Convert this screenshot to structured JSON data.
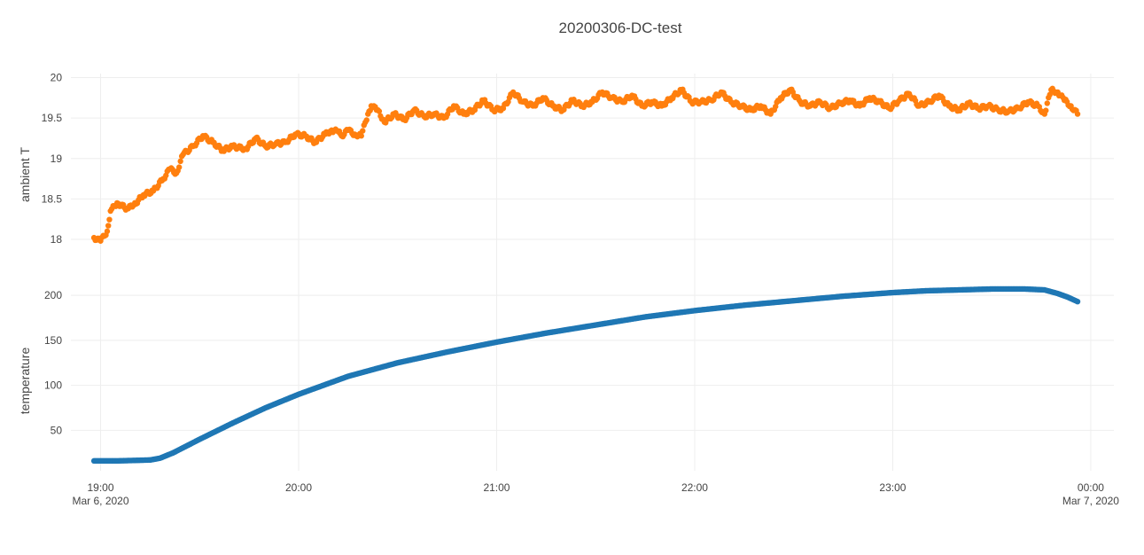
{
  "chart_data": {
    "type": "scatter",
    "title": "20200306-DC-test",
    "xlabel": "",
    "x_ticks": [
      {
        "t": "2020-03-06T19:00",
        "label": "19:00",
        "sublabel": "Mar 6, 2020"
      },
      {
        "t": "2020-03-06T20:00",
        "label": "20:00",
        "sublabel": ""
      },
      {
        "t": "2020-03-06T21:00",
        "label": "21:00",
        "sublabel": ""
      },
      {
        "t": "2020-03-06T22:00",
        "label": "22:00",
        "sublabel": ""
      },
      {
        "t": "2020-03-06T23:00",
        "label": "23:00",
        "sublabel": ""
      },
      {
        "t": "2020-03-07T00:00",
        "label": "00:00",
        "sublabel": "Mar 7, 2020"
      }
    ],
    "xlim": [
      "2020-03-06T18:51",
      "2020-03-07T00:07"
    ],
    "subplots": [
      {
        "ylabel": "ambient T",
        "ylim": [
          17.55,
          20.05
        ],
        "yticks": [
          18,
          18.5,
          19,
          19.5,
          20
        ],
        "ytick_labels": [
          "18",
          "18.5",
          "19",
          "19.5",
          "20"
        ],
        "series": [
          {
            "color": "#ff7f0e",
            "points": [
              [
                "2020-03-06T18:58",
                18.02
              ],
              [
                "2020-03-06T19:00",
                17.98
              ],
              [
                "2020-03-06T19:02",
                18.1
              ],
              [
                "2020-03-06T19:03",
                18.35
              ],
              [
                "2020-03-06T19:05",
                18.45
              ],
              [
                "2020-03-06T19:08",
                18.38
              ],
              [
                "2020-03-06T19:10",
                18.42
              ],
              [
                "2020-03-06T19:13",
                18.55
              ],
              [
                "2020-03-06T19:16",
                18.6
              ],
              [
                "2020-03-06T19:19",
                18.75
              ],
              [
                "2020-03-06T19:21",
                18.87
              ],
              [
                "2020-03-06T19:23",
                18.82
              ],
              [
                "2020-03-06T19:25",
                19.05
              ],
              [
                "2020-03-06T19:28",
                19.15
              ],
              [
                "2020-03-06T19:31",
                19.28
              ],
              [
                "2020-03-06T19:34",
                19.2
              ],
              [
                "2020-03-06T19:37",
                19.1
              ],
              [
                "2020-03-06T19:40",
                19.15
              ],
              [
                "2020-03-06T19:44",
                19.12
              ],
              [
                "2020-03-06T19:47",
                19.25
              ],
              [
                "2020-03-06T19:50",
                19.15
              ],
              [
                "2020-03-06T19:53",
                19.18
              ],
              [
                "2020-03-06T19:56",
                19.2
              ],
              [
                "2020-03-06T19:59",
                19.3
              ],
              [
                "2020-03-06T20:02",
                19.28
              ],
              [
                "2020-03-06T20:05",
                19.2
              ],
              [
                "2020-03-06T20:08",
                19.3
              ],
              [
                "2020-03-06T20:10",
                19.35
              ],
              [
                "2020-03-06T20:12",
                19.33
              ],
              [
                "2020-03-06T20:13",
                19.28
              ],
              [
                "2020-03-06T20:15",
                19.35
              ],
              [
                "2020-03-06T20:17",
                19.3
              ],
              [
                "2020-03-06T20:19",
                19.28
              ],
              [
                "2020-03-06T20:21",
                19.55
              ],
              [
                "2020-03-06T20:22",
                19.65
              ],
              [
                "2020-03-06T20:24",
                19.6
              ],
              [
                "2020-03-06T20:26",
                19.45
              ],
              [
                "2020-03-06T20:29",
                19.55
              ],
              [
                "2020-03-06T20:32",
                19.48
              ],
              [
                "2020-03-06T20:35",
                19.6
              ],
              [
                "2020-03-06T20:38",
                19.52
              ],
              [
                "2020-03-06T20:41",
                19.55
              ],
              [
                "2020-03-06T20:44",
                19.5
              ],
              [
                "2020-03-06T20:47",
                19.65
              ],
              [
                "2020-03-06T20:50",
                19.55
              ],
              [
                "2020-03-06T20:53",
                19.6
              ],
              [
                "2020-03-06T20:56",
                19.72
              ],
              [
                "2020-03-06T20:59",
                19.6
              ],
              [
                "2020-03-06T21:02",
                19.62
              ],
              [
                "2020-03-06T21:05",
                19.82
              ],
              [
                "2020-03-06T21:08",
                19.7
              ],
              [
                "2020-03-06T21:11",
                19.65
              ],
              [
                "2020-03-06T21:14",
                19.75
              ],
              [
                "2020-03-06T21:17",
                19.65
              ],
              [
                "2020-03-06T21:20",
                19.6
              ],
              [
                "2020-03-06T21:23",
                19.72
              ],
              [
                "2020-03-06T21:26",
                19.65
              ],
              [
                "2020-03-06T21:29",
                19.7
              ],
              [
                "2020-03-06T21:32",
                19.82
              ],
              [
                "2020-03-06T21:35",
                19.75
              ],
              [
                "2020-03-06T21:38",
                19.7
              ],
              [
                "2020-03-06T21:41",
                19.78
              ],
              [
                "2020-03-06T21:44",
                19.65
              ],
              [
                "2020-03-06T21:47",
                19.7
              ],
              [
                "2020-03-06T21:50",
                19.65
              ],
              [
                "2020-03-06T21:53",
                19.75
              ],
              [
                "2020-03-06T21:56",
                19.85
              ],
              [
                "2020-03-06T21:59",
                19.7
              ],
              [
                "2020-03-06T22:02",
                19.7
              ],
              [
                "2020-03-06T22:05",
                19.72
              ],
              [
                "2020-03-06T22:08",
                19.82
              ],
              [
                "2020-03-06T22:11",
                19.7
              ],
              [
                "2020-03-06T22:14",
                19.65
              ],
              [
                "2020-03-06T22:17",
                19.6
              ],
              [
                "2020-03-06T22:20",
                19.65
              ],
              [
                "2020-03-06T22:23",
                19.55
              ],
              [
                "2020-03-06T22:26",
                19.75
              ],
              [
                "2020-03-06T22:29",
                19.85
              ],
              [
                "2020-03-06T22:32",
                19.7
              ],
              [
                "2020-03-06T22:35",
                19.65
              ],
              [
                "2020-03-06T22:38",
                19.7
              ],
              [
                "2020-03-06T22:41",
                19.62
              ],
              [
                "2020-03-06T22:44",
                19.68
              ],
              [
                "2020-03-06T22:47",
                19.72
              ],
              [
                "2020-03-06T22:50",
                19.65
              ],
              [
                "2020-03-06T22:53",
                19.75
              ],
              [
                "2020-03-06T22:56",
                19.7
              ],
              [
                "2020-03-06T22:59",
                19.62
              ],
              [
                "2020-03-06T23:02",
                19.72
              ],
              [
                "2020-03-06T23:05",
                19.8
              ],
              [
                "2020-03-06T23:08",
                19.65
              ],
              [
                "2020-03-06T23:11",
                19.7
              ],
              [
                "2020-03-06T23:14",
                19.78
              ],
              [
                "2020-03-06T23:17",
                19.65
              ],
              [
                "2020-03-06T23:20",
                19.6
              ],
              [
                "2020-03-06T23:23",
                19.68
              ],
              [
                "2020-03-06T23:26",
                19.62
              ],
              [
                "2020-03-06T23:29",
                19.65
              ],
              [
                "2020-03-06T23:32",
                19.6
              ],
              [
                "2020-03-06T23:35",
                19.58
              ],
              [
                "2020-03-06T23:38",
                19.62
              ],
              [
                "2020-03-06T23:41",
                19.7
              ],
              [
                "2020-03-06T23:44",
                19.65
              ],
              [
                "2020-03-06T23:46",
                19.55
              ],
              [
                "2020-03-06T23:48",
                19.85
              ],
              [
                "2020-03-06T23:50",
                19.82
              ],
              [
                "2020-03-06T23:52",
                19.72
              ],
              [
                "2020-03-06T23:54",
                19.65
              ],
              [
                "2020-03-06T23:56",
                19.55
              ]
            ]
          }
        ]
      },
      {
        "ylabel": "temperature",
        "ylim": [
          5,
          205
        ],
        "yticks": [
          50,
          100,
          150,
          200
        ],
        "ytick_labels": [
          "50",
          "100",
          "150",
          "200"
        ],
        "series": [
          {
            "color": "#1f77b4",
            "points": [
              [
                "2020-03-06T18:58",
                16
              ],
              [
                "2020-03-06T19:05",
                16
              ],
              [
                "2020-03-06T19:15",
                17
              ],
              [
                "2020-03-06T19:18",
                19
              ],
              [
                "2020-03-06T19:22",
                25
              ],
              [
                "2020-03-06T19:30",
                40
              ],
              [
                "2020-03-06T19:40",
                58
              ],
              [
                "2020-03-06T19:50",
                75
              ],
              [
                "2020-03-06T20:00",
                90
              ],
              [
                "2020-03-06T20:15",
                110
              ],
              [
                "2020-03-06T20:30",
                125
              ],
              [
                "2020-03-06T20:45",
                137
              ],
              [
                "2020-03-06T21:00",
                148
              ],
              [
                "2020-03-06T21:15",
                158
              ],
              [
                "2020-03-06T21:30",
                167
              ],
              [
                "2020-03-06T21:45",
                176
              ],
              [
                "2020-03-06T22:00",
                183
              ],
              [
                "2020-03-06T22:15",
                189
              ],
              [
                "2020-03-06T22:30",
                194
              ],
              [
                "2020-03-06T22:45",
                199
              ],
              [
                "2020-03-06T23:00",
                203
              ],
              [
                "2020-03-06T23:10",
                205
              ],
              [
                "2020-03-06T23:20",
                206
              ],
              [
                "2020-03-06T23:30",
                207
              ],
              [
                "2020-03-06T23:40",
                207
              ],
              [
                "2020-03-06T23:46",
                206
              ],
              [
                "2020-03-06T23:50",
                202
              ],
              [
                "2020-03-06T23:53",
                198
              ],
              [
                "2020-03-06T23:56",
                193
              ]
            ]
          }
        ]
      }
    ]
  }
}
